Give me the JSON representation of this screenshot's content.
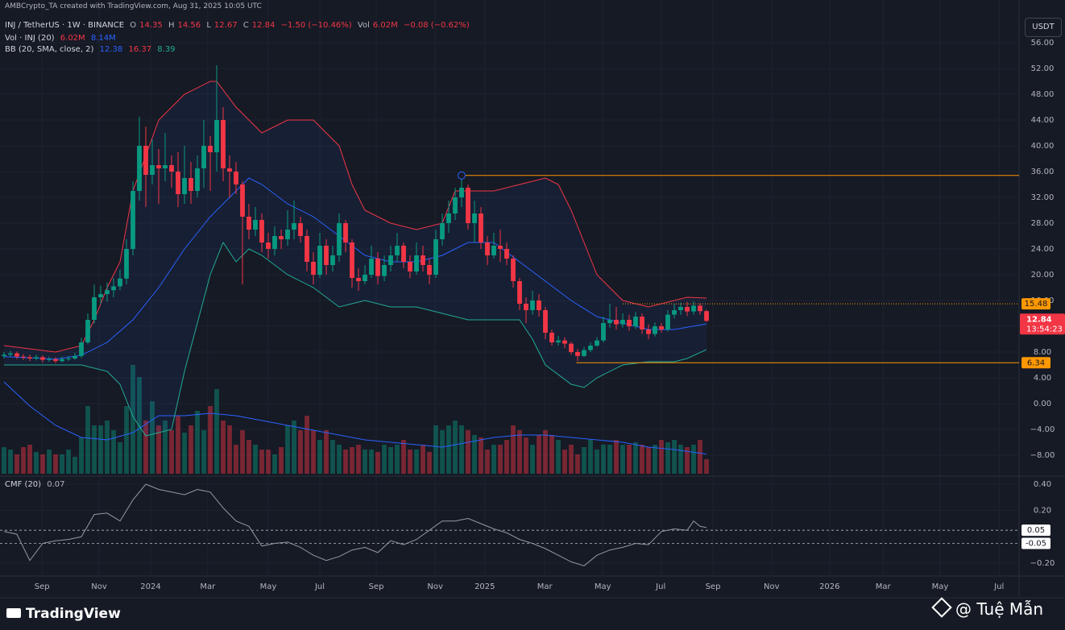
{
  "header": {
    "attribution": "AMBCrypto_TA created with TradingView.com, Aug 31, 2025 10:05 UTC",
    "currency": "USDT"
  },
  "legend": {
    "symbol": "INJ / TetherUS · 1W · BINANCE",
    "ohlc_keys": [
      "O",
      "H",
      "L",
      "C"
    ],
    "change": "−1.50 (−10.46%)",
    "vol_key": "Vol",
    "vol": "6.02M",
    "vol_change": "−0.08 (−0.62%)",
    "volume_name": "Vol · INJ (20)",
    "volume_values": [
      "6.02M",
      "8.14M"
    ]
  },
  "footer": {
    "brand": "TradingView",
    "author": "@ Tuệ Mẫn"
  },
  "chart_data": {
    "type": "candlestick",
    "up_color": "#089981",
    "down_color": "#f23645",
    "xlim": [
      -0.625,
      157.5
    ],
    "xticks": [
      {
        "value": 5.9,
        "label": "Sep"
      },
      {
        "value": 14.75,
        "label": "Nov"
      },
      {
        "value": 22.75,
        "label": "2024"
      },
      {
        "value": 31.6,
        "label": "Mar"
      },
      {
        "value": 41,
        "label": "May"
      },
      {
        "value": 49,
        "label": "Jul"
      },
      {
        "value": 57.75,
        "label": "Sep"
      },
      {
        "value": 66.9,
        "label": "Nov"
      },
      {
        "value": 74.6,
        "label": "2025"
      },
      {
        "value": 83.9,
        "label": "Mar"
      },
      {
        "value": 92.9,
        "label": "May"
      },
      {
        "value": 101.9,
        "label": "Jul"
      },
      {
        "value": 110,
        "label": "Sep"
      },
      {
        "value": 119.1,
        "label": "Nov"
      },
      {
        "value": 128.1,
        "label": "2026"
      },
      {
        "value": 136.4,
        "label": "Mar"
      },
      {
        "value": 145.25,
        "label": "May"
      },
      {
        "value": 154.4,
        "label": "Jul"
      }
    ],
    "ylim": [
      -10.875,
      60.125
    ],
    "yticks": [
      {
        "value": 56,
        "label": "56.00"
      },
      {
        "value": 52,
        "label": "52.00"
      },
      {
        "value": 48,
        "label": "48.00"
      },
      {
        "value": 44,
        "label": "44.00"
      },
      {
        "value": 40,
        "label": "40.00"
      },
      {
        "value": 36,
        "label": "36.00"
      },
      {
        "value": 32,
        "label": "32.00"
      },
      {
        "value": 28,
        "label": "28.00"
      },
      {
        "value": 24,
        "label": "24.00"
      },
      {
        "value": 20,
        "label": "20.00"
      },
      {
        "value": 16,
        "label": "16.00"
      },
      {
        "value": 12,
        "label": "12.00"
      },
      {
        "value": 8,
        "label": "8.00"
      },
      {
        "value": 4,
        "label": "4.00"
      },
      {
        "value": 0,
        "label": "0.00"
      },
      {
        "value": -4,
        "label": "−4.00"
      },
      {
        "value": -8,
        "label": "−8.00"
      }
    ],
    "grid": true,
    "open": [
      7.4,
      7.6,
      7.8,
      7.3,
      7.2,
      7.0,
      7.2,
      6.8,
      6.9,
      6.6,
      6.9,
      7.0,
      7.4,
      9.5,
      13.0,
      16.5,
      17.0,
      17.6,
      18.2,
      19.4,
      24.0,
      33.0,
      40.0,
      35.5,
      37.0,
      36.5,
      37.0,
      36.0,
      32.5,
      35.0,
      33.0,
      36.5,
      40.0,
      39.0,
      44.0,
      36.5,
      36.0,
      34.0,
      29.0,
      27.0,
      28.5,
      25.0,
      24.0,
      26.0,
      25.5,
      27.0,
      28.0,
      26.0,
      22.0,
      20.0,
      24.5,
      21.5,
      23.0,
      28.0,
      25.0,
      19.5,
      19.0,
      20.0,
      22.5,
      19.8,
      21.5,
      23.0,
      24.5,
      22.0,
      20.5,
      23.0,
      21.5,
      20.0,
      25.5,
      28.0,
      29.5,
      32.0,
      33.5,
      28.0,
      29.5,
      25.0,
      23.0,
      24.5,
      24.0,
      22.5,
      19.0,
      15.5,
      14.5,
      16.0,
      14.5,
      11.0,
      9.5,
      9.8,
      9.3,
      8.0,
      7.4,
      8.3,
      9.0,
      9.8,
      12.5,
      13.0,
      12.3,
      13.0,
      12.0,
      13.5,
      11.5,
      10.8,
      12.0,
      11.5,
      13.8,
      14.5,
      15.0,
      14.3,
      15.2,
      14.35
    ],
    "high": [
      8.0,
      8.2,
      8.1,
      7.7,
      7.6,
      7.6,
      7.5,
      7.3,
      7.2,
      7.3,
      7.4,
      7.9,
      10.2,
      14.0,
      18.5,
      18.3,
      18.8,
      19.5,
      20.8,
      25.5,
      34.5,
      44.5,
      43.0,
      41.0,
      39.5,
      42.0,
      38.5,
      39.0,
      40.0,
      37.5,
      38.5,
      44.0,
      41.5,
      52.5,
      46.0,
      38.5,
      37.5,
      34.5,
      31.0,
      30.5,
      29.5,
      26.5,
      27.5,
      27.0,
      30.0,
      31.5,
      29.0,
      27.0,
      23.5,
      26.5,
      25.5,
      24.5,
      29.5,
      28.5,
      25.5,
      21.0,
      21.5,
      24.5,
      23.5,
      23.0,
      24.5,
      26.5,
      25.0,
      23.0,
      25.0,
      24.5,
      22.5,
      27.0,
      29.5,
      31.5,
      33.5,
      35.5,
      34.0,
      31.5,
      30.5,
      26.0,
      26.5,
      27.0,
      25.0,
      23.0,
      19.5,
      16.5,
      17.5,
      17.0,
      15.0,
      11.5,
      10.5,
      10.3,
      9.6,
      8.5,
      8.8,
      9.5,
      10.3,
      13.5,
      15.5,
      15.0,
      14.0,
      13.8,
      14.2,
      14.0,
      12.3,
      12.6,
      12.5,
      14.5,
      15.5,
      15.7,
      15.8,
      15.9,
      15.6,
      14.56
    ],
    "low": [
      7.0,
      7.2,
      6.9,
      6.8,
      6.6,
      6.7,
      6.4,
      6.5,
      6.3,
      6.4,
      6.6,
      6.8,
      7.1,
      9.2,
      12.4,
      15.4,
      15.8,
      16.5,
      17.6,
      18.5,
      23.0,
      31.5,
      30.5,
      34.0,
      31.0,
      34.5,
      33.5,
      30.5,
      31.0,
      31.0,
      32.0,
      33.5,
      33.0,
      36.0,
      34.5,
      32.0,
      32.5,
      18.5,
      25.5,
      26.0,
      23.5,
      22.5,
      23.0,
      24.0,
      24.5,
      25.5,
      25.0,
      20.5,
      18.5,
      19.5,
      20.0,
      20.5,
      22.0,
      23.5,
      18.0,
      17.5,
      18.5,
      19.5,
      18.5,
      19.0,
      20.5,
      22.0,
      21.0,
      19.5,
      20.0,
      20.5,
      18.5,
      19.5,
      24.5,
      26.5,
      28.5,
      30.5,
      27.0,
      25.0,
      24.0,
      21.5,
      22.5,
      22.0,
      21.5,
      18.0,
      14.5,
      12.5,
      13.8,
      13.5,
      10.0,
      9.0,
      9.0,
      8.6,
      7.6,
      6.6,
      7.2,
      8.0,
      8.8,
      9.5,
      11.8,
      11.5,
      11.8,
      11.3,
      11.6,
      10.8,
      10.0,
      10.4,
      11.0,
      11.2,
      13.2,
      13.8,
      13.6,
      13.8,
      13.8,
      12.67
    ],
    "close": [
      7.6,
      7.8,
      7.3,
      7.2,
      7.0,
      7.2,
      6.8,
      6.9,
      6.6,
      6.9,
      7.0,
      7.4,
      9.5,
      13.0,
      16.5,
      17.0,
      17.6,
      18.2,
      19.4,
      24.0,
      33.0,
      40.0,
      35.5,
      37.0,
      36.5,
      37.0,
      36.0,
      32.5,
      35.0,
      33.0,
      36.5,
      40.0,
      39.0,
      44.0,
      36.5,
      36.0,
      34.0,
      29.0,
      27.0,
      28.5,
      25.0,
      24.0,
      26.0,
      25.5,
      27.0,
      28.0,
      26.0,
      22.0,
      20.0,
      24.5,
      21.5,
      23.0,
      28.0,
      25.0,
      19.5,
      19.0,
      20.0,
      22.5,
      19.8,
      21.5,
      23.0,
      24.5,
      22.0,
      20.5,
      23.0,
      21.5,
      20.0,
      25.5,
      28.0,
      29.5,
      32.0,
      33.5,
      28.0,
      29.5,
      25.0,
      23.0,
      24.5,
      24.0,
      22.5,
      19.0,
      15.5,
      14.5,
      16.0,
      14.5,
      11.0,
      9.5,
      9.8,
      9.3,
      8.0,
      7.4,
      8.3,
      9.0,
      9.8,
      12.5,
      13.0,
      12.3,
      13.0,
      12.0,
      13.5,
      11.5,
      10.8,
      12.0,
      11.5,
      13.8,
      14.5,
      15.0,
      14.3,
      15.2,
      14.35,
      12.84
    ],
    "countdown": "13:54:23",
    "volume": {
      "ylim": [
        0,
        189.33
      ],
      "values": [
        11,
        10,
        8,
        11,
        12,
        9,
        8,
        10,
        8,
        8,
        10,
        7,
        15,
        28,
        20,
        20,
        22,
        18,
        13,
        28,
        45,
        40,
        22,
        30,
        20,
        22,
        18,
        24,
        17,
        20,
        26,
        18,
        28,
        35,
        22,
        20,
        12,
        18,
        14,
        12,
        10,
        10,
        8,
        11,
        20,
        22,
        18,
        24,
        18,
        14,
        18,
        14,
        12,
        10,
        11,
        12,
        10,
        10,
        9,
        12,
        11,
        12,
        14,
        10,
        10,
        12,
        9,
        20,
        18,
        20,
        22,
        20,
        18,
        16,
        15,
        10,
        12,
        12,
        14,
        20,
        18,
        15,
        12,
        16,
        18,
        16,
        14,
        10,
        12,
        8,
        11,
        14,
        10,
        12,
        12,
        14,
        12,
        12,
        13,
        12,
        11,
        12,
        14,
        13,
        14,
        12,
        11,
        12,
        14,
        6.02
      ],
      "ma": {
        "color": "#2962ff",
        "x": [
          0,
          4,
          8,
          12,
          16,
          20,
          24,
          28,
          32,
          36,
          40,
          44,
          48,
          52,
          56,
          60,
          64,
          68,
          72,
          76,
          80,
          84,
          88,
          92,
          96,
          100,
          104,
          109
        ],
        "values": [
          38,
          28,
          20,
          15,
          14,
          17,
          24,
          24,
          25,
          24,
          22,
          20,
          18,
          16,
          14,
          13,
          12,
          11,
          13,
          15,
          16,
          16,
          15,
          14,
          13,
          11,
          10,
          8.14
        ]
      }
    },
    "bb": {
      "name": "BB (20, SMA, close, 2)",
      "fill": "rgba(41,98,255,0.07)",
      "basis": {
        "color": "#2962ff",
        "x": [
          0,
          8,
          12,
          16,
          20,
          24,
          28,
          32,
          36,
          38,
          40,
          44,
          48,
          52,
          56,
          60,
          64,
          68,
          72,
          76,
          80,
          84,
          88,
          92,
          96,
          100,
          104,
          109
        ],
        "values": [
          7.3,
          6.9,
          7.5,
          9.5,
          13,
          18,
          24,
          29,
          33,
          35,
          34,
          31,
          29,
          26,
          23,
          22,
          22,
          23,
          25,
          25,
          22,
          19,
          16,
          13.5,
          12.5,
          11.5,
          11.5,
          12.38
        ]
      },
      "upper": {
        "color": "#f23645",
        "x": [
          0,
          8,
          12,
          14,
          16,
          18,
          20,
          24,
          28,
          32,
          33,
          36,
          40,
          44,
          48,
          52,
          54,
          56,
          60,
          64,
          68,
          70,
          72,
          76,
          80,
          84,
          86,
          88,
          92,
          96,
          100,
          104,
          106,
          109
        ],
        "values": [
          9,
          8,
          9,
          13,
          18,
          22,
          33,
          44,
          48,
          50,
          50,
          46,
          42,
          44,
          44,
          40,
          34,
          30,
          28,
          27,
          28,
          33,
          33,
          33,
          34,
          35,
          34,
          30,
          20,
          16,
          15,
          16,
          16.5,
          16.37
        ]
      },
      "lower": {
        "color": "#22ab94",
        "x": [
          0,
          8,
          12,
          16,
          18,
          20,
          22,
          26,
          28,
          32,
          34,
          36,
          38,
          40,
          44,
          48,
          52,
          56,
          60,
          64,
          68,
          72,
          76,
          80,
          82,
          84,
          88,
          90,
          92,
          96,
          100,
          104,
          106,
          109
        ],
        "values": [
          6,
          6,
          6,
          5,
          3,
          -2,
          -5,
          -4,
          5,
          20,
          25,
          22,
          24,
          23,
          20,
          18,
          15,
          16,
          15,
          15,
          14,
          13,
          13,
          13,
          10,
          6,
          3,
          2.5,
          4,
          6,
          6.5,
          6.5,
          7,
          8.39
        ]
      }
    },
    "levels_color": "#ff9800",
    "levels": [
      {
        "value": 35.4,
        "start": 71,
        "style": "solid",
        "marker": true
      },
      {
        "value": 15.48,
        "start": 96,
        "style": "dotted"
      },
      {
        "value": 6.34,
        "start": 88.8,
        "style": "solid"
      }
    ],
    "cmf": {
      "name": "CMF (20)",
      "color": "#9598a1",
      "ylim": [
        -0.298,
        0.449
      ],
      "yticks": [
        {
          "value": 0.4,
          "label": "0.40"
        },
        {
          "value": 0.2,
          "label": "0.20"
        },
        {
          "value": -0.2,
          "label": "−0.20"
        }
      ],
      "levels": [
        0.05,
        -0.05
      ],
      "x": [
        0,
        2,
        4,
        6,
        8,
        10,
        12,
        14,
        16,
        18,
        20,
        22,
        24,
        26,
        28,
        30,
        32,
        34,
        36,
        38,
        40,
        42,
        44,
        46,
        48,
        50,
        52,
        54,
        56,
        58,
        60,
        62,
        64,
        66,
        68,
        70,
        72,
        74,
        76,
        78,
        80,
        82,
        84,
        86,
        88,
        90,
        92,
        94,
        96,
        98,
        100,
        102,
        104,
        106,
        107,
        108,
        109
      ],
      "values": [
        0.04,
        0.02,
        -0.18,
        -0.05,
        -0.03,
        -0.02,
        0.0,
        0.17,
        0.18,
        0.12,
        0.28,
        0.4,
        0.36,
        0.34,
        0.32,
        0.36,
        0.34,
        0.22,
        0.12,
        0.08,
        -0.07,
        -0.05,
        -0.04,
        -0.08,
        -0.14,
        -0.18,
        -0.15,
        -0.1,
        -0.08,
        -0.12,
        -0.03,
        -0.06,
        -0.02,
        0.05,
        0.12,
        0.12,
        0.14,
        0.1,
        0.06,
        0.03,
        -0.02,
        -0.05,
        -0.09,
        -0.14,
        -0.19,
        -0.22,
        -0.14,
        -0.1,
        -0.08,
        -0.05,
        -0.06,
        0.04,
        0.06,
        0.05,
        0.12,
        0.08,
        0.07
      ]
    }
  }
}
